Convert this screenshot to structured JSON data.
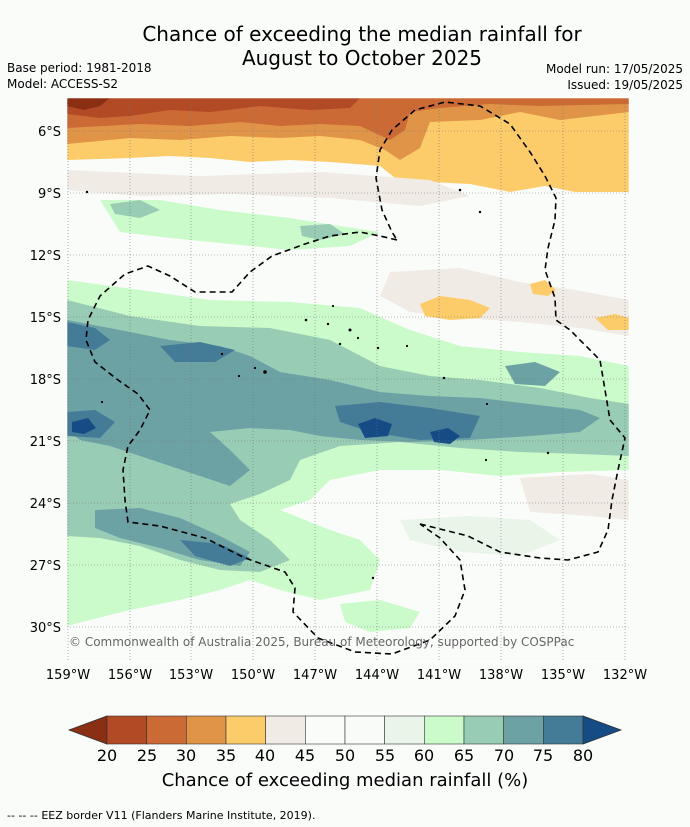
{
  "header": {
    "title_line1": "Chance of exceeding the median rainfall for",
    "title_line2": "August to October 2025",
    "base_period": "Base period: 1981-2018",
    "model": "Model: ACCESS-S2",
    "model_run": "Model run: 17/05/2025",
    "issued": "Issued: 19/05/2025"
  },
  "map": {
    "copyright": "© Commonwealth of Australia 2025, Bureau of Meteorology, supported by COSPPac",
    "lat_labels": [
      "6°S",
      "9°S",
      "12°S",
      "15°S",
      "18°S",
      "21°S",
      "24°S",
      "27°S",
      "30°S"
    ],
    "lon_labels": [
      "159°W",
      "156°W",
      "153°W",
      "150°W",
      "147°W",
      "144°W",
      "141°W",
      "138°W",
      "135°W",
      "132°W"
    ]
  },
  "colorbar": {
    "label": "Chance of exceeding median rainfall (%)",
    "ticks": [
      "20",
      "25",
      "30",
      "35",
      "40",
      "45",
      "50",
      "55",
      "60",
      "65",
      "70",
      "75",
      "80"
    ],
    "colors": {
      "below20": "#8a2e14",
      "20-25": "#b24a25",
      "25-30": "#cc6a35",
      "30-35": "#e09448",
      "35-40": "#fdcc6a",
      "40-45": "#f0ebe5",
      "45-50": "#fafcfa",
      "50-55": "#f9fbf8",
      "55-60": "#eaf5ea",
      "60-65": "#cbfbca",
      "65-70": "#99ccb4",
      "70-75": "#6da2a5",
      "75-80": "#447c98",
      "above80": "#154c85"
    }
  },
  "footer": {
    "legend_symbol": "--  --  --",
    "legend_text": "EEZ border V11 (Flanders Marine Institute, 2019)."
  }
}
